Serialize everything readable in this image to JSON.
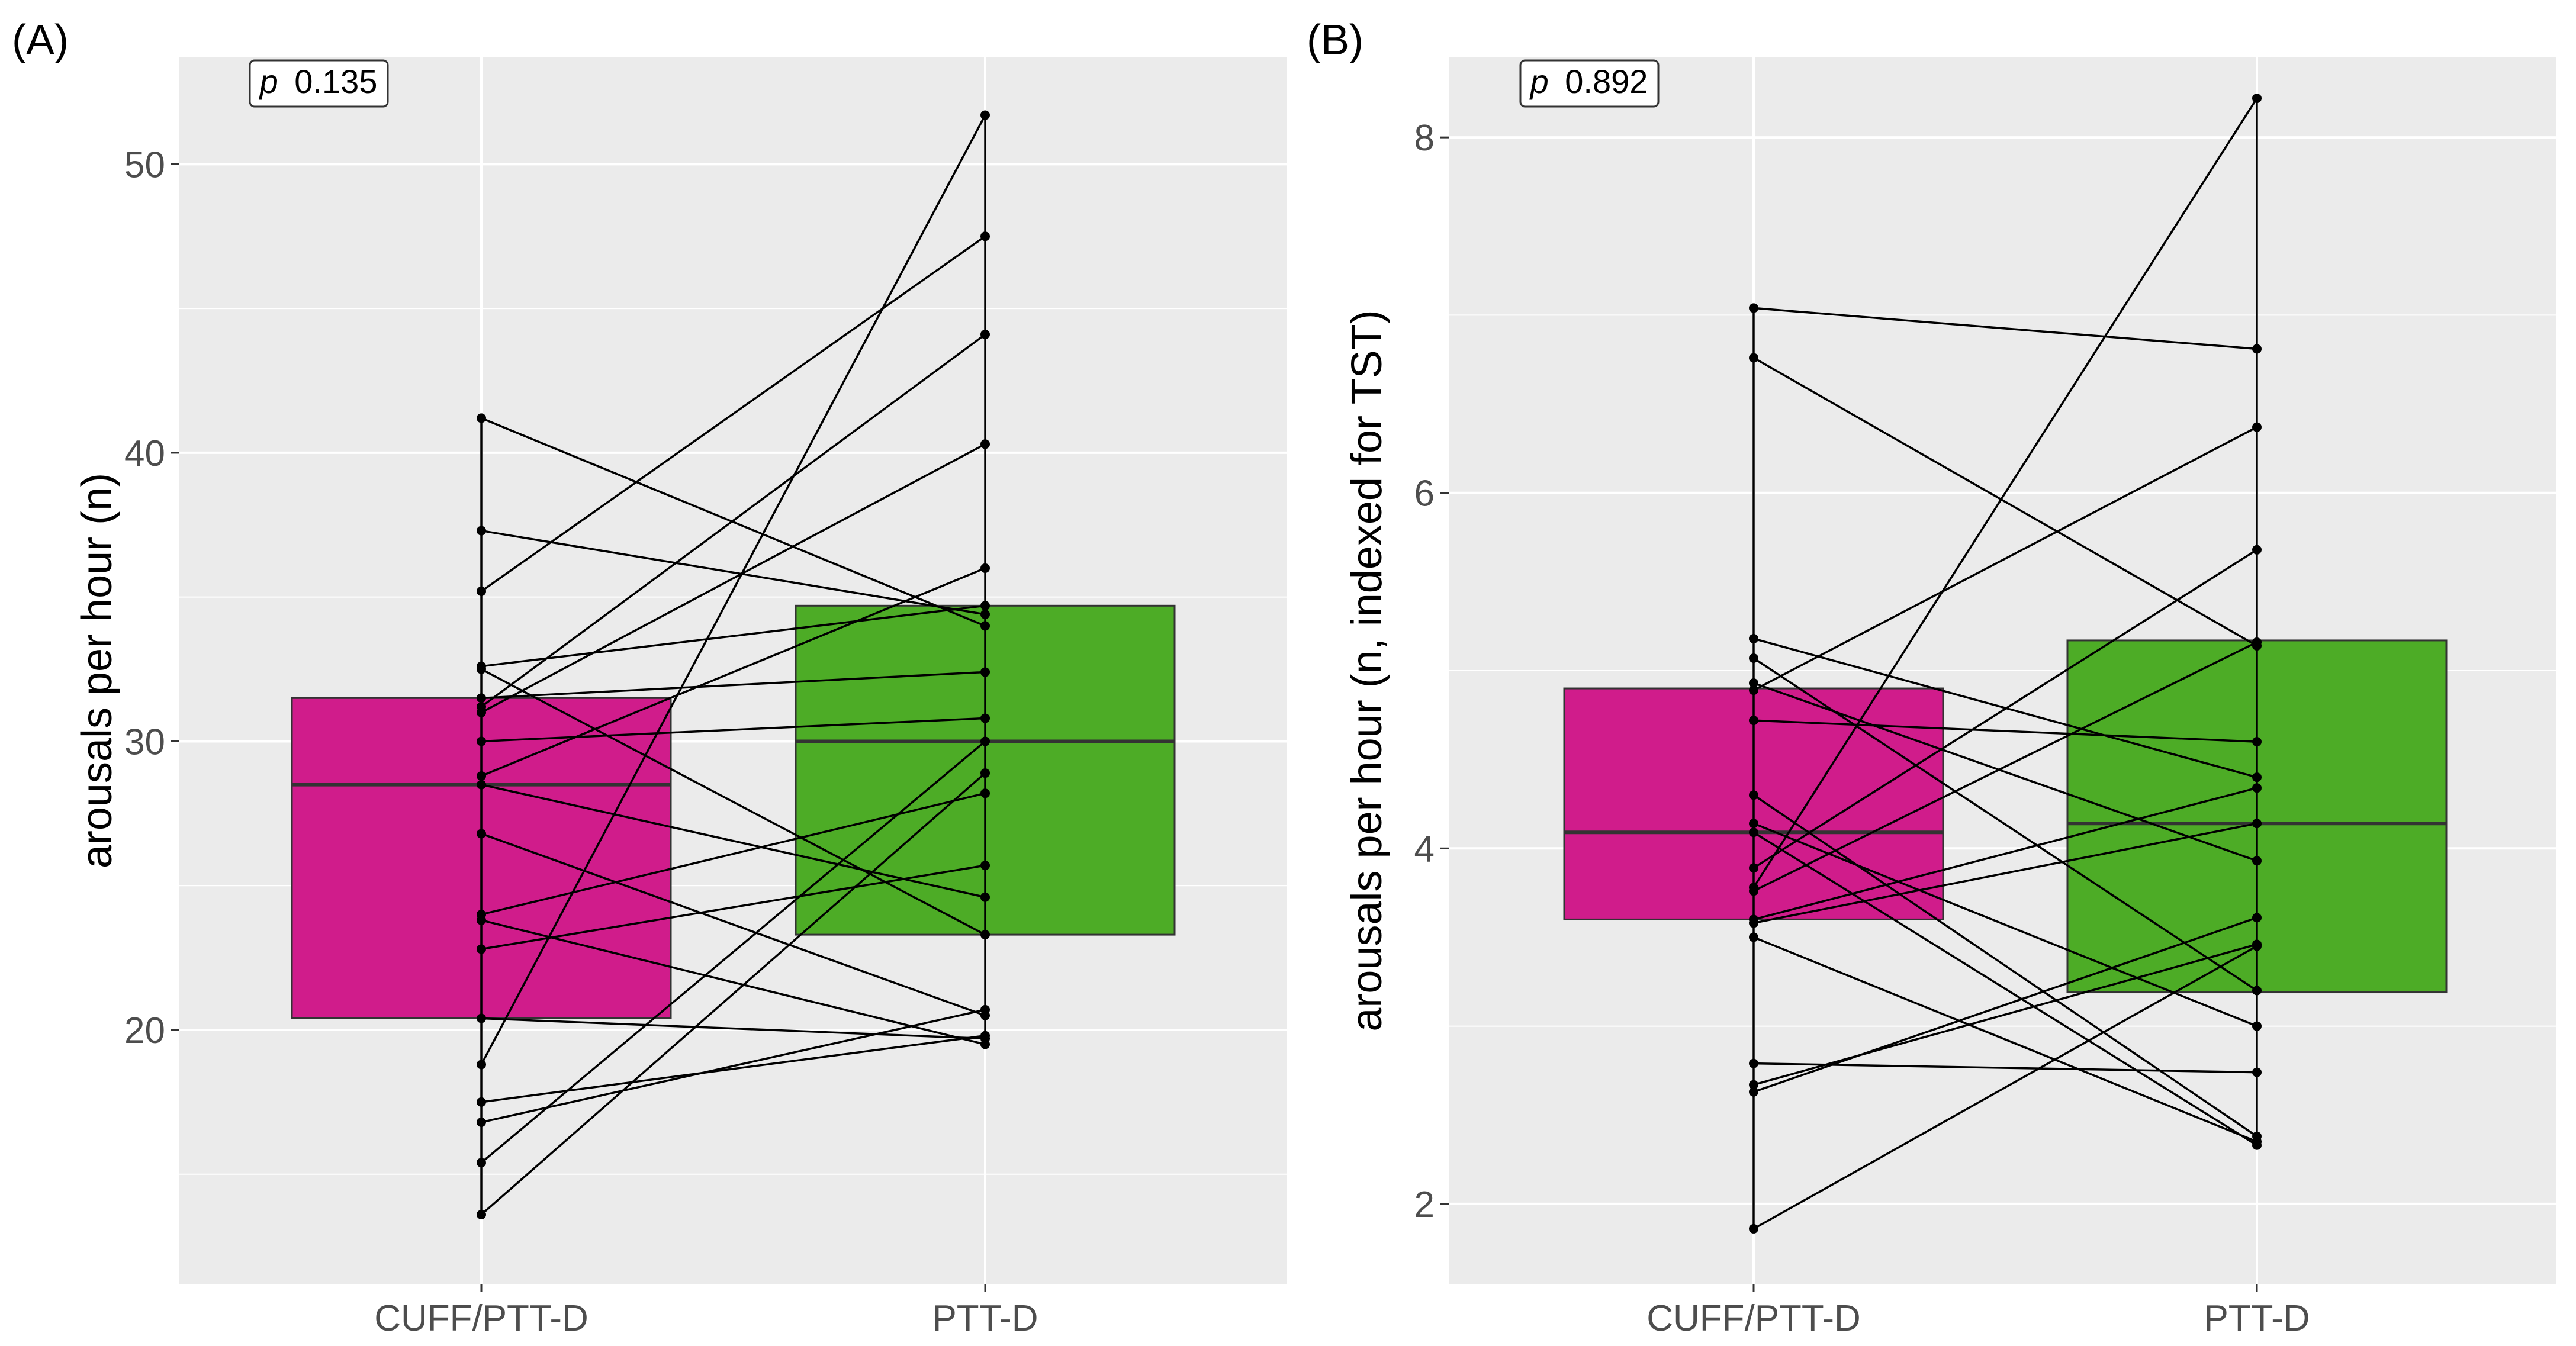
{
  "chart_data": [
    {
      "type": "boxplot-paired",
      "panel_label": "(A)",
      "annotation_italic": "p",
      "annotation_value": "0.135",
      "ylabel": "arousals per hour (n)",
      "xlabel": "",
      "ylim": [
        11.2,
        53.7
      ],
      "yticks": [
        20,
        30,
        40,
        50
      ],
      "yticks_minor": [
        15,
        25,
        35,
        45
      ],
      "categories": [
        "CUFF/PTT-D",
        "PTT-D"
      ],
      "colors": [
        "#d01c8b",
        "#4dac26"
      ],
      "boxes": [
        {
          "group": "CUFF/PTT-D",
          "q1": 20.4,
          "median": 28.5,
          "q3": 31.5
        },
        {
          "group": "PTT-D",
          "q1": 23.3,
          "median": 30.0,
          "q3": 34.7
        }
      ],
      "pairs": [
        [
          41.2,
          34.0
        ],
        [
          37.3,
          34.4
        ],
        [
          35.2,
          47.5
        ],
        [
          32.6,
          34.7
        ],
        [
          32.5,
          23.3
        ],
        [
          31.5,
          32.4
        ],
        [
          31.2,
          44.1
        ],
        [
          31.0,
          40.3
        ],
        [
          30.0,
          30.8
        ],
        [
          28.8,
          36.0
        ],
        [
          28.5,
          24.6
        ],
        [
          26.8,
          20.5
        ],
        [
          24.0,
          28.2
        ],
        [
          23.8,
          19.5
        ],
        [
          22.8,
          25.7
        ],
        [
          20.4,
          19.7
        ],
        [
          18.8,
          51.7
        ],
        [
          17.5,
          19.8
        ],
        [
          16.8,
          20.7
        ],
        [
          15.4,
          30.0
        ],
        [
          13.6,
          28.9
        ]
      ]
    },
    {
      "type": "boxplot-paired",
      "panel_label": "(B)",
      "annotation_italic": "p",
      "annotation_value": "0.892",
      "ylabel": "arousals per hour (n, indexed for TST)",
      "xlabel": "",
      "ylim": [
        1.55,
        8.45
      ],
      "yticks": [
        2,
        4,
        6,
        8
      ],
      "yticks_minor": [
        3,
        5,
        7
      ],
      "categories": [
        "CUFF/PTT-D",
        "PTT-D"
      ],
      "colors": [
        "#d01c8b",
        "#4dac26"
      ],
      "boxes": [
        {
          "group": "CUFF/PTT-D",
          "q1": 3.6,
          "median": 4.09,
          "q3": 4.9
        },
        {
          "group": "PTT-D",
          "q1": 3.19,
          "median": 4.14,
          "q3": 5.17
        }
      ],
      "pairs": [
        [
          7.04,
          6.81
        ],
        [
          6.76,
          5.14
        ],
        [
          5.18,
          4.4
        ],
        [
          5.07,
          3.2
        ],
        [
          4.93,
          3.93
        ],
        [
          4.89,
          6.37
        ],
        [
          4.72,
          4.6
        ],
        [
          4.3,
          2.38
        ],
        [
          4.14,
          3.0
        ],
        [
          4.09,
          2.33
        ],
        [
          3.89,
          5.68
        ],
        [
          3.78,
          8.22
        ],
        [
          3.76,
          5.16
        ],
        [
          3.6,
          4.34
        ],
        [
          3.58,
          4.14
        ],
        [
          3.5,
          2.35
        ],
        [
          2.79,
          2.74
        ],
        [
          2.67,
          3.46
        ],
        [
          2.63,
          3.61
        ],
        [
          1.86,
          3.45
        ]
      ]
    }
  ]
}
